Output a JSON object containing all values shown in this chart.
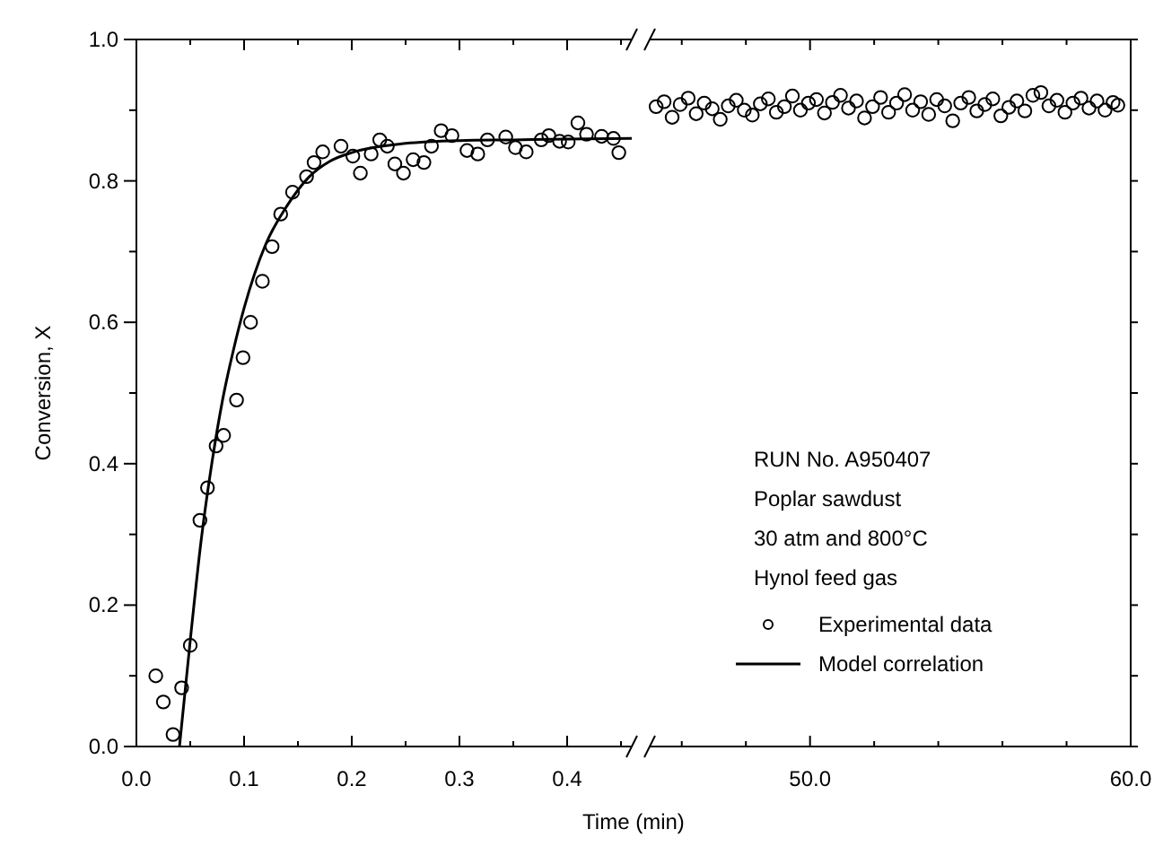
{
  "chart_data": [
    {
      "type": "scatter",
      "xlabel": "Time (min)",
      "ylabel": "Conversion, X",
      "xlim": [
        0,
        0.46
      ],
      "ylim": [
        0,
        1
      ],
      "xticks": [
        {
          "value": 0,
          "label": "0.0"
        },
        {
          "value": 0.05,
          "label": null
        },
        {
          "value": 0.1,
          "label": "0.1"
        },
        {
          "value": 0.15,
          "label": null
        },
        {
          "value": 0.2,
          "label": "0.2"
        },
        {
          "value": 0.25,
          "label": null
        },
        {
          "value": 0.3,
          "label": "0.3"
        },
        {
          "value": 0.35,
          "label": null
        },
        {
          "value": 0.4,
          "label": "0.4"
        },
        {
          "value": 0.45,
          "label": null
        }
      ],
      "yticks": [
        {
          "value": 0,
          "label": "0.0"
        },
        {
          "value": 0.1,
          "label": null
        },
        {
          "value": 0.2,
          "label": "0.2"
        },
        {
          "value": 0.3,
          "label": null
        },
        {
          "value": 0.4,
          "label": "0.4"
        },
        {
          "value": 0.5,
          "label": null
        },
        {
          "value": 0.6,
          "label": "0.6"
        },
        {
          "value": 0.7,
          "label": null
        },
        {
          "value": 0.8,
          "label": "0.8"
        },
        {
          "value": 0.9,
          "label": null
        },
        {
          "value": 1,
          "label": "1.0"
        }
      ],
      "marker": "circle",
      "legend": "right",
      "grid": false,
      "series": [
        {
          "name": "Experimental data",
          "color": "#000000",
          "x": [
            0.018,
            0.025,
            0.034,
            0.042,
            0.05,
            0.059,
            0.066,
            0.074,
            0.081,
            0.093,
            0.099,
            0.106,
            0.117,
            0.126,
            0.134,
            0.145,
            0.158,
            0.165,
            0.173,
            0.19,
            0.201,
            0.208,
            0.218,
            0.226,
            0.233,
            0.24,
            0.248,
            0.257,
            0.267,
            0.274,
            0.283,
            0.293,
            0.307,
            0.317,
            0.326,
            0.343,
            0.352,
            0.362,
            0.376,
            0.383,
            0.393,
            0.401,
            0.41,
            0.418,
            0.432,
            0.443,
            0.448
          ],
          "values": [
            0.1,
            0.063,
            0.017,
            0.083,
            0.143,
            0.32,
            0.366,
            0.425,
            0.44,
            0.49,
            0.55,
            0.6,
            0.658,
            0.707,
            0.753,
            0.784,
            0.806,
            0.826,
            0.841,
            0.849,
            0.835,
            0.811,
            0.838,
            0.858,
            0.849,
            0.824,
            0.811,
            0.83,
            0.826,
            0.849,
            0.871,
            0.864,
            0.843,
            0.838,
            0.858,
            0.862,
            0.847,
            0.841,
            0.858,
            0.864,
            0.856,
            0.855,
            0.882,
            0.866,
            0.863,
            0.86,
            0.84
          ]
        },
        {
          "name": "Model correlation",
          "type": "line",
          "marker": "none",
          "color": "#000000",
          "x": [
            0.04,
            0.05,
            0.06,
            0.07,
            0.08,
            0.09,
            0.1,
            0.12,
            0.14,
            0.16,
            0.18,
            0.2,
            0.25,
            0.3,
            0.35,
            0.4,
            0.46
          ],
          "values": [
            0,
            0.15,
            0.29,
            0.4,
            0.49,
            0.56,
            0.62,
            0.71,
            0.765,
            0.805,
            0.828,
            0.84,
            0.853,
            0.857,
            0.858,
            0.859,
            0.86
          ]
        }
      ]
    },
    {
      "type": "scatter",
      "xlim": [
        45,
        60
      ],
      "ylim": [
        0,
        1
      ],
      "tick_labels": "x",
      "marker": "circle",
      "grid": false,
      "xticks": [
        {
          "value": 46,
          "label": null
        },
        {
          "value": 48,
          "label": null
        },
        {
          "value": 50,
          "label": "50.0"
        },
        {
          "value": 52,
          "label": null
        },
        {
          "value": 54,
          "label": null
        },
        {
          "value": 56,
          "label": null
        },
        {
          "value": 58,
          "label": null
        },
        {
          "value": 60,
          "label": "60.0"
        }
      ],
      "yticks": [
        {
          "value": 0,
          "label": null
        },
        {
          "value": 0.1,
          "label": null
        },
        {
          "value": 0.2,
          "label": null
        },
        {
          "value": 0.3,
          "label": null
        },
        {
          "value": 0.4,
          "label": null
        },
        {
          "value": 0.5,
          "label": null
        },
        {
          "value": 0.6,
          "label": null
        },
        {
          "value": 0.7,
          "label": null
        },
        {
          "value": 0.8,
          "label": null
        },
        {
          "value": 0.9,
          "label": null
        },
        {
          "value": 1,
          "label": null
        }
      ],
      "annotations": [
        "RUN No. A950407",
        "Poplar sawdust",
        "30 atm and 800°C",
        "Hynol feed gas"
      ],
      "series": [
        {
          "color": "#000000",
          "x": [
            45.2,
            45.45,
            45.7,
            45.95,
            46.2,
            46.45,
            46.7,
            46.95,
            47.2,
            47.45,
            47.7,
            47.95,
            48.2,
            48.45,
            48.7,
            48.95,
            49.2,
            49.45,
            49.7,
            49.95,
            50.2,
            50.45,
            50.7,
            50.95,
            51.2,
            51.45,
            51.7,
            51.95,
            52.2,
            52.45,
            52.7,
            52.95,
            53.2,
            53.45,
            53.7,
            53.95,
            54.2,
            54.45,
            54.7,
            54.95,
            55.2,
            55.45,
            55.7,
            55.95,
            56.2,
            56.45,
            56.7,
            56.95,
            57.2,
            57.45,
            57.7,
            57.95,
            58.2,
            58.45,
            58.7,
            58.95,
            59.2,
            59.45,
            59.6
          ],
          "values": [
            0.905,
            0.912,
            0.89,
            0.908,
            0.917,
            0.895,
            0.91,
            0.902,
            0.887,
            0.906,
            0.914,
            0.9,
            0.893,
            0.909,
            0.916,
            0.897,
            0.905,
            0.92,
            0.9,
            0.91,
            0.915,
            0.896,
            0.911,
            0.921,
            0.903,
            0.913,
            0.889,
            0.905,
            0.918,
            0.897,
            0.91,
            0.922,
            0.9,
            0.912,
            0.894,
            0.915,
            0.906,
            0.885,
            0.91,
            0.918,
            0.899,
            0.908,
            0.916,
            0.892,
            0.904,
            0.913,
            0.899,
            0.921,
            0.925,
            0.906,
            0.914,
            0.897,
            0.91,
            0.917,
            0.903,
            0.913,
            0.9,
            0.911,
            0.907
          ]
        }
      ]
    }
  ]
}
